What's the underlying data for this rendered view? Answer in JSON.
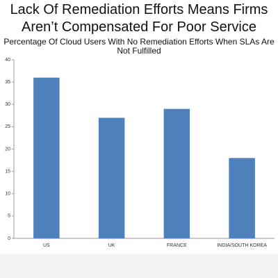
{
  "chart_data": {
    "type": "bar",
    "title": "Lack Of Remediation Efforts Means Firms Aren’t Compensated For Poor Service",
    "subtitle": "Percentage Of Cloud Users With No Remediation Efforts When SLAs Are Not Fulfilled",
    "categories": [
      "US",
      "UK",
      "FRANCE",
      "INDIA/SOUTH KOREA"
    ],
    "values": [
      36,
      27,
      29,
      18
    ],
    "color": "#4f81bd",
    "ylim": [
      0,
      40
    ],
    "yticks": [
      0,
      5,
      10,
      15,
      20,
      25,
      30,
      35,
      40
    ],
    "grid": false
  }
}
